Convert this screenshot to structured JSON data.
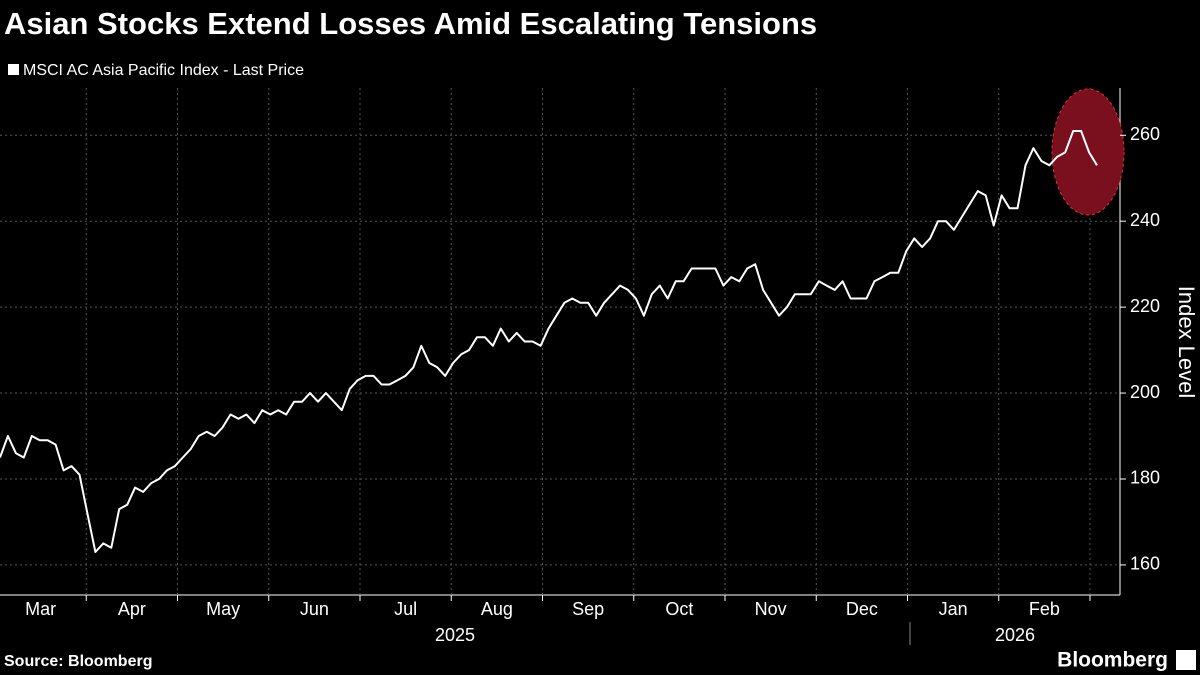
{
  "chart_data": {
    "type": "line",
    "title": "Asian Stocks Extend Losses Amid Escalating Tensions",
    "y_label": "Index Level",
    "source": "Source: Bloomberg",
    "brand": "Bloomberg",
    "months": [
      "Mar",
      "Apr",
      "May",
      "Jun",
      "Jul",
      "Aug",
      "Sep",
      "Oct",
      "Nov",
      "Dec",
      "Jan",
      "Feb"
    ],
    "years": [
      "2025",
      "2026"
    ],
    "ylim": [
      153,
      271
    ],
    "yticks": [
      160,
      180,
      200,
      220,
      240,
      260
    ],
    "grid": true,
    "series": [
      {
        "name": "MSCI AC Asia Pacific Index - Last Price",
        "color": "#ffffff",
        "values": [
          185,
          190,
          186,
          185,
          190,
          189,
          189,
          188,
          182,
          183,
          181,
          172,
          163,
          165,
          164,
          173,
          174,
          178,
          177,
          179,
          180,
          182,
          183,
          185,
          187,
          190,
          191,
          190,
          192,
          195,
          194,
          195,
          193,
          196,
          195,
          196,
          195,
          198,
          198,
          200,
          198,
          200,
          198,
          196,
          201,
          203,
          204,
          204,
          202,
          202,
          203,
          204,
          206,
          211,
          207,
          206,
          204,
          207,
          209,
          210,
          213,
          213,
          211,
          215,
          212,
          214,
          212,
          212,
          211,
          215,
          218,
          221,
          222,
          221,
          221,
          218,
          221,
          223,
          225,
          224,
          222,
          218,
          223,
          225,
          222,
          226,
          226,
          229,
          229,
          229,
          229,
          225,
          227,
          226,
          229,
          230,
          224,
          221,
          218,
          220,
          223,
          223,
          223,
          226,
          225,
          224,
          226,
          222,
          222,
          222,
          226,
          227,
          228,
          228,
          233,
          236,
          234,
          236,
          240,
          240,
          238,
          241,
          244,
          247,
          246,
          239,
          246,
          243,
          243,
          253,
          257,
          254,
          253,
          255,
          256,
          261,
          261,
          256,
          253
        ]
      }
    ]
  }
}
